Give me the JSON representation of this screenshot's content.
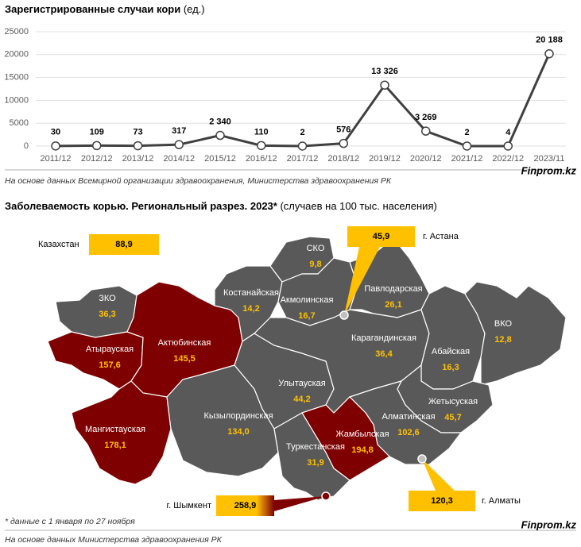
{
  "chart_data": [
    {
      "type": "line",
      "title": "Зарегистрированные случаи кори",
      "unit": "(ед.)",
      "categories": [
        "2011/12",
        "2012/12",
        "2013/12",
        "2014/12",
        "2015/12",
        "2016/12",
        "2017/12",
        "2018/12",
        "2019/12",
        "2020/12",
        "2021/12",
        "2022/12",
        "2023/11"
      ],
      "series": [
        {
          "color": "#404040",
          "values": [
            30,
            109,
            73,
            317,
            2340,
            110,
            2,
            576,
            13326,
            3269,
            2,
            4,
            20188
          ],
          "value_labels": [
            "30",
            "109",
            "73",
            "317",
            "2 340",
            "110",
            "2",
            "576",
            "13 326",
            "3 269",
            "2",
            "4",
            "20 188"
          ]
        }
      ],
      "ylim": [
        0,
        25000
      ],
      "yticks": [
        0,
        5000,
        10000,
        15000,
        20000,
        25000
      ],
      "grid": true
    },
    {
      "type": "map",
      "title": "Заболеваемость корью. Региональный разрез. 2023*",
      "unit": "(случаев на 100 тыс. населения)",
      "regions": [
        "ЗКО",
        "Атырауская",
        "Актюбинская",
        "Мангистауская",
        "Кызылординская",
        "Костанайская",
        "СКО",
        "Акмолинская",
        "Павлодарская",
        "Улытауская",
        "Карагандинская",
        "Абайская",
        "ВКО",
        "Жетысуская",
        "Алматинская",
        "Жамбылская",
        "Туркестанская"
      ],
      "values": [
        36.3,
        157.6,
        145.5,
        178.1,
        134.0,
        14.2,
        9.8,
        16.7,
        26.1,
        44.2,
        36.4,
        16.3,
        12.8,
        45.7,
        102.6,
        194.8,
        31.9
      ],
      "value_labels": [
        "36,3",
        "157,6",
        "145,5",
        "178,1",
        "134,0",
        "14,2",
        "9,8",
        "16,7",
        "26,1",
        "44,2",
        "36,4",
        "16,3",
        "12,8",
        "45,7",
        "102,6",
        "194,8",
        "31,9"
      ],
      "colors": [
        "#595959",
        "#7f0000",
        "#7f0000",
        "#7f0000",
        "#595959",
        "#595959",
        "#595959",
        "#595959",
        "#595959",
        "#595959",
        "#595959",
        "#595959",
        "#595959",
        "#595959",
        "#595959",
        "#7f0000",
        "#595959"
      ],
      "national": {
        "name": "Казахстан",
        "value": 88.9,
        "value_label": "88,9"
      },
      "cities": [
        {
          "name": "г. Астана",
          "value": 45.9,
          "value_label": "45,9"
        },
        {
          "name": "г. Шымкент",
          "value": 258.9,
          "value_label": "258,9"
        },
        {
          "name": "г. Алматы",
          "value": 120.3,
          "value_label": "120,3"
        }
      ],
      "note": "* данные с 1 января по 27 ноября"
    }
  ],
  "sources": [
    "На основе данных Всемирной организации здравоохранения, Министерства здравоохранения РК",
    "На основе данных Министерства здравоохранения РК"
  ],
  "brand": "Finprom.kz"
}
